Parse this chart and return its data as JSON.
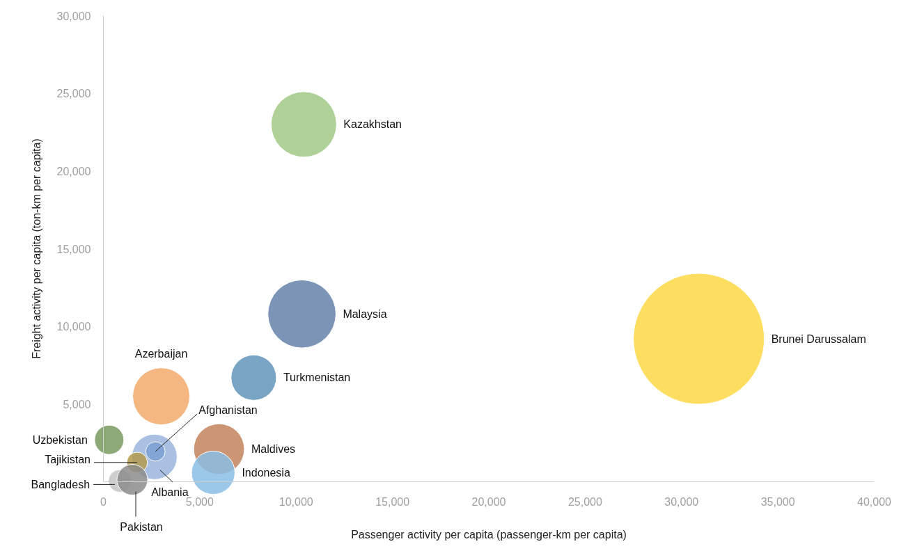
{
  "chart_data": {
    "type": "bubble",
    "xlabel": "Passenger activity per capita (passenger-km per capita)",
    "ylabel": "Freight activity per capita (ton-km per capita)",
    "xlim": [
      0,
      40000
    ],
    "ylim": [
      0,
      30000
    ],
    "xticks": [
      {
        "value": 0,
        "label": "0"
      },
      {
        "value": 5000,
        "label": "5,000"
      },
      {
        "value": 10000,
        "label": "10,000"
      },
      {
        "value": 15000,
        "label": "15,000"
      },
      {
        "value": 20000,
        "label": "20,000"
      },
      {
        "value": 25000,
        "label": "25,000"
      },
      {
        "value": 30000,
        "label": "30,000"
      },
      {
        "value": 35000,
        "label": "35,000"
      },
      {
        "value": 40000,
        "label": "40,000"
      }
    ],
    "yticks": [
      {
        "value": 5000,
        "label": "5,000"
      },
      {
        "value": 10000,
        "label": "10,000"
      },
      {
        "value": 15000,
        "label": "15,000"
      },
      {
        "value": 20000,
        "label": "20,000"
      },
      {
        "value": 25000,
        "label": "25,000"
      },
      {
        "value": 30000,
        "label": "30,000"
      }
    ],
    "grid": false,
    "series": [
      {
        "name": "Kazakhstan",
        "color": "#a1c986",
        "x": [
          10400
        ],
        "values": [
          23000
        ],
        "sizes": [
          0.25
        ]
      },
      {
        "name": "Malaysia",
        "color": "#6582aa",
        "x": [
          10300
        ],
        "values": [
          10800
        ],
        "sizes": [
          0.27
        ]
      },
      {
        "name": "Brunei Darussalam",
        "color": "#fed844",
        "x": [
          30900
        ],
        "values": [
          9200
        ],
        "sizes": [
          1
        ]
      },
      {
        "name": "Turkmenistan",
        "color": "#6394b9",
        "x": [
          7800
        ],
        "values": [
          6700
        ],
        "sizes": [
          0.12
        ]
      },
      {
        "name": "Azerbaijan",
        "color": "#f3aa6c",
        "x": [
          3000
        ],
        "values": [
          5500
        ],
        "sizes": [
          0.19
        ]
      },
      {
        "name": "Uzbekistan",
        "color": "#7a9a60",
        "x": [
          300
        ],
        "values": [
          2700
        ],
        "sizes": [
          0.05
        ]
      },
      {
        "name": "Albania",
        "color": "#9bb5de",
        "x": [
          2650
        ],
        "values": [
          1600
        ],
        "sizes": [
          0.12
        ]
      },
      {
        "name": "Afghanistan",
        "color": "#7ca0d4",
        "x": [
          2700
        ],
        "values": [
          1950
        ],
        "sizes": [
          0.022
        ]
      },
      {
        "name": "Tajikistan",
        "color": "#b39a4e",
        "x": [
          1750
        ],
        "values": [
          1240
        ],
        "sizes": [
          0.025
        ]
      },
      {
        "name": "Maldives",
        "color": "#c3835b",
        "x": [
          6000
        ],
        "values": [
          2100
        ],
        "sizes": [
          0.15
        ]
      },
      {
        "name": "Indonesia",
        "color": "#8abee5",
        "x": [
          5700
        ],
        "values": [
          580
        ],
        "sizes": [
          0.11
        ]
      },
      {
        "name": "Bangladesh",
        "color": "#c4c4c4",
        "x": [
          850
        ],
        "values": [
          50
        ],
        "sizes": [
          0.03
        ]
      },
      {
        "name": "Pakistan",
        "color": "#8c8c8c",
        "x": [
          1500
        ],
        "values": [
          130
        ],
        "sizes": [
          0.055
        ]
      }
    ]
  }
}
